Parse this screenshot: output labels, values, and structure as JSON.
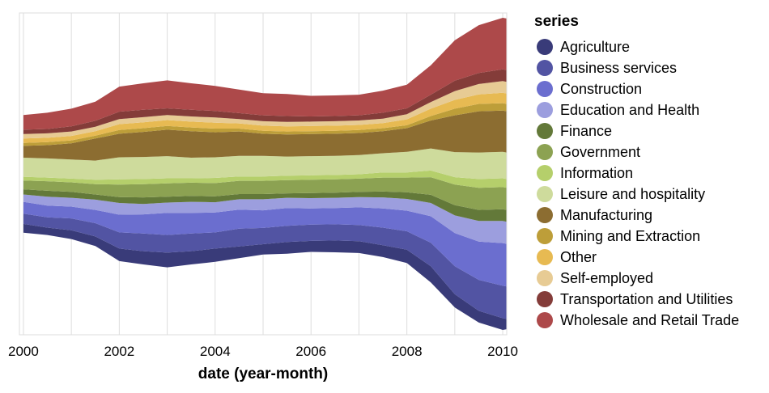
{
  "chart_data": {
    "type": "area",
    "stack": "center",
    "xlabel": "date (year-month)",
    "ylabel": "",
    "x_range": [
      "1999-12",
      "2010-02"
    ],
    "x_ticks": [
      "2000",
      "2002",
      "2004",
      "2006",
      "2008",
      "2010"
    ],
    "grid": true,
    "legend": {
      "title": "series",
      "position": "right"
    },
    "dates": [
      "2000-01",
      "2000-07",
      "2001-01",
      "2001-07",
      "2002-01",
      "2002-07",
      "2003-01",
      "2003-07",
      "2004-01",
      "2004-07",
      "2005-01",
      "2005-07",
      "2006-01",
      "2006-07",
      "2007-01",
      "2007-07",
      "2008-01",
      "2008-07",
      "2009-01",
      "2009-07",
      "2010-01",
      "2010-02"
    ],
    "series": [
      {
        "name": "Agriculture",
        "color": "#393b79",
        "values": [
          12,
          10,
          12,
          13,
          17,
          18,
          20,
          18,
          18,
          16,
          14,
          16,
          15,
          16,
          16,
          16,
          18,
          22,
          18,
          16,
          16,
          14
        ]
      },
      {
        "name": "Business services",
        "color": "#5254a3",
        "values": [
          14,
          14,
          16,
          18,
          22,
          24,
          24,
          24,
          22,
          24,
          22,
          22,
          22,
          22,
          22,
          24,
          25,
          32,
          38,
          42,
          44,
          44
        ]
      },
      {
        "name": "Construction",
        "color": "#6b6ecf",
        "values": [
          16,
          16,
          16,
          18,
          24,
          26,
          30,
          28,
          27,
          26,
          24,
          24,
          22,
          22,
          24,
          26,
          28,
          36,
          45,
          52,
          58,
          58
        ]
      },
      {
        "name": "Education and Health",
        "color": "#9c9ede",
        "values": [
          10,
          12,
          12,
          14,
          16,
          14,
          14,
          15,
          14,
          14,
          15,
          14,
          14,
          14,
          14,
          15,
          16,
          18,
          24,
          28,
          30,
          30
        ]
      },
      {
        "name": "Finance",
        "color": "#637939",
        "values": [
          7,
          8,
          8,
          7,
          8,
          9,
          8,
          8,
          8,
          7,
          7,
          6,
          7,
          7,
          7,
          8,
          9,
          11,
          14,
          15,
          16,
          16
        ]
      },
      {
        "name": "Government",
        "color": "#8ca252",
        "values": [
          12,
          13,
          13,
          14,
          17,
          18,
          18,
          18,
          18,
          18,
          18,
          18,
          18,
          18,
          18,
          19,
          20,
          24,
          28,
          30,
          30,
          30
        ]
      },
      {
        "name": "Information",
        "color": "#b5cf6b",
        "values": [
          5,
          5,
          5,
          6,
          7,
          7,
          7,
          6,
          7,
          6,
          6,
          6,
          6,
          6,
          6,
          7,
          7,
          9,
          10,
          12,
          12,
          12
        ]
      },
      {
        "name": "Leisure and hospitality",
        "color": "#cedb9c",
        "values": [
          26,
          26,
          26,
          26,
          30,
          30,
          30,
          28,
          28,
          28,
          28,
          26,
          26,
          26,
          26,
          26,
          28,
          30,
          34,
          36,
          36,
          36
        ]
      },
      {
        "name": "Manufacturing",
        "color": "#8c6d31",
        "values": [
          16,
          18,
          22,
          30,
          32,
          34,
          36,
          36,
          34,
          33,
          30,
          30,
          30,
          30,
          30,
          30,
          32,
          38,
          50,
          56,
          56,
          56
        ]
      },
      {
        "name": "Mining and Extraction",
        "color": "#bd9e39",
        "values": [
          4,
          4,
          4,
          4,
          5,
          5,
          5,
          5,
          5,
          4,
          4,
          4,
          4,
          4,
          4,
          4,
          4,
          6,
          9,
          10,
          10,
          10
        ]
      },
      {
        "name": "Other",
        "color": "#e7ba52",
        "values": [
          6,
          6,
          6,
          6,
          8,
          8,
          8,
          8,
          8,
          7,
          7,
          7,
          7,
          7,
          7,
          7,
          8,
          10,
          12,
          13,
          14,
          14
        ]
      },
      {
        "name": "Self-employed",
        "color": "#e7cb94",
        "values": [
          6,
          6,
          6,
          6,
          7,
          7,
          7,
          7,
          7,
          6,
          6,
          6,
          6,
          6,
          6,
          6,
          7,
          9,
          12,
          14,
          16,
          16
        ]
      },
      {
        "name": "Transportation and Utilities",
        "color": "#843c39",
        "values": [
          6,
          6,
          7,
          8,
          10,
          10,
          9,
          9,
          9,
          8,
          8,
          8,
          7,
          7,
          7,
          8,
          8,
          10,
          14,
          15,
          16,
          16
        ]
      },
      {
        "name": "Wholesale and Retail Trade",
        "color": "#ad494a",
        "values": [
          20,
          22,
          24,
          26,
          34,
          36,
          38,
          36,
          34,
          32,
          30,
          30,
          28,
          28,
          28,
          30,
          32,
          40,
          55,
          65,
          70,
          70
        ]
      }
    ]
  }
}
